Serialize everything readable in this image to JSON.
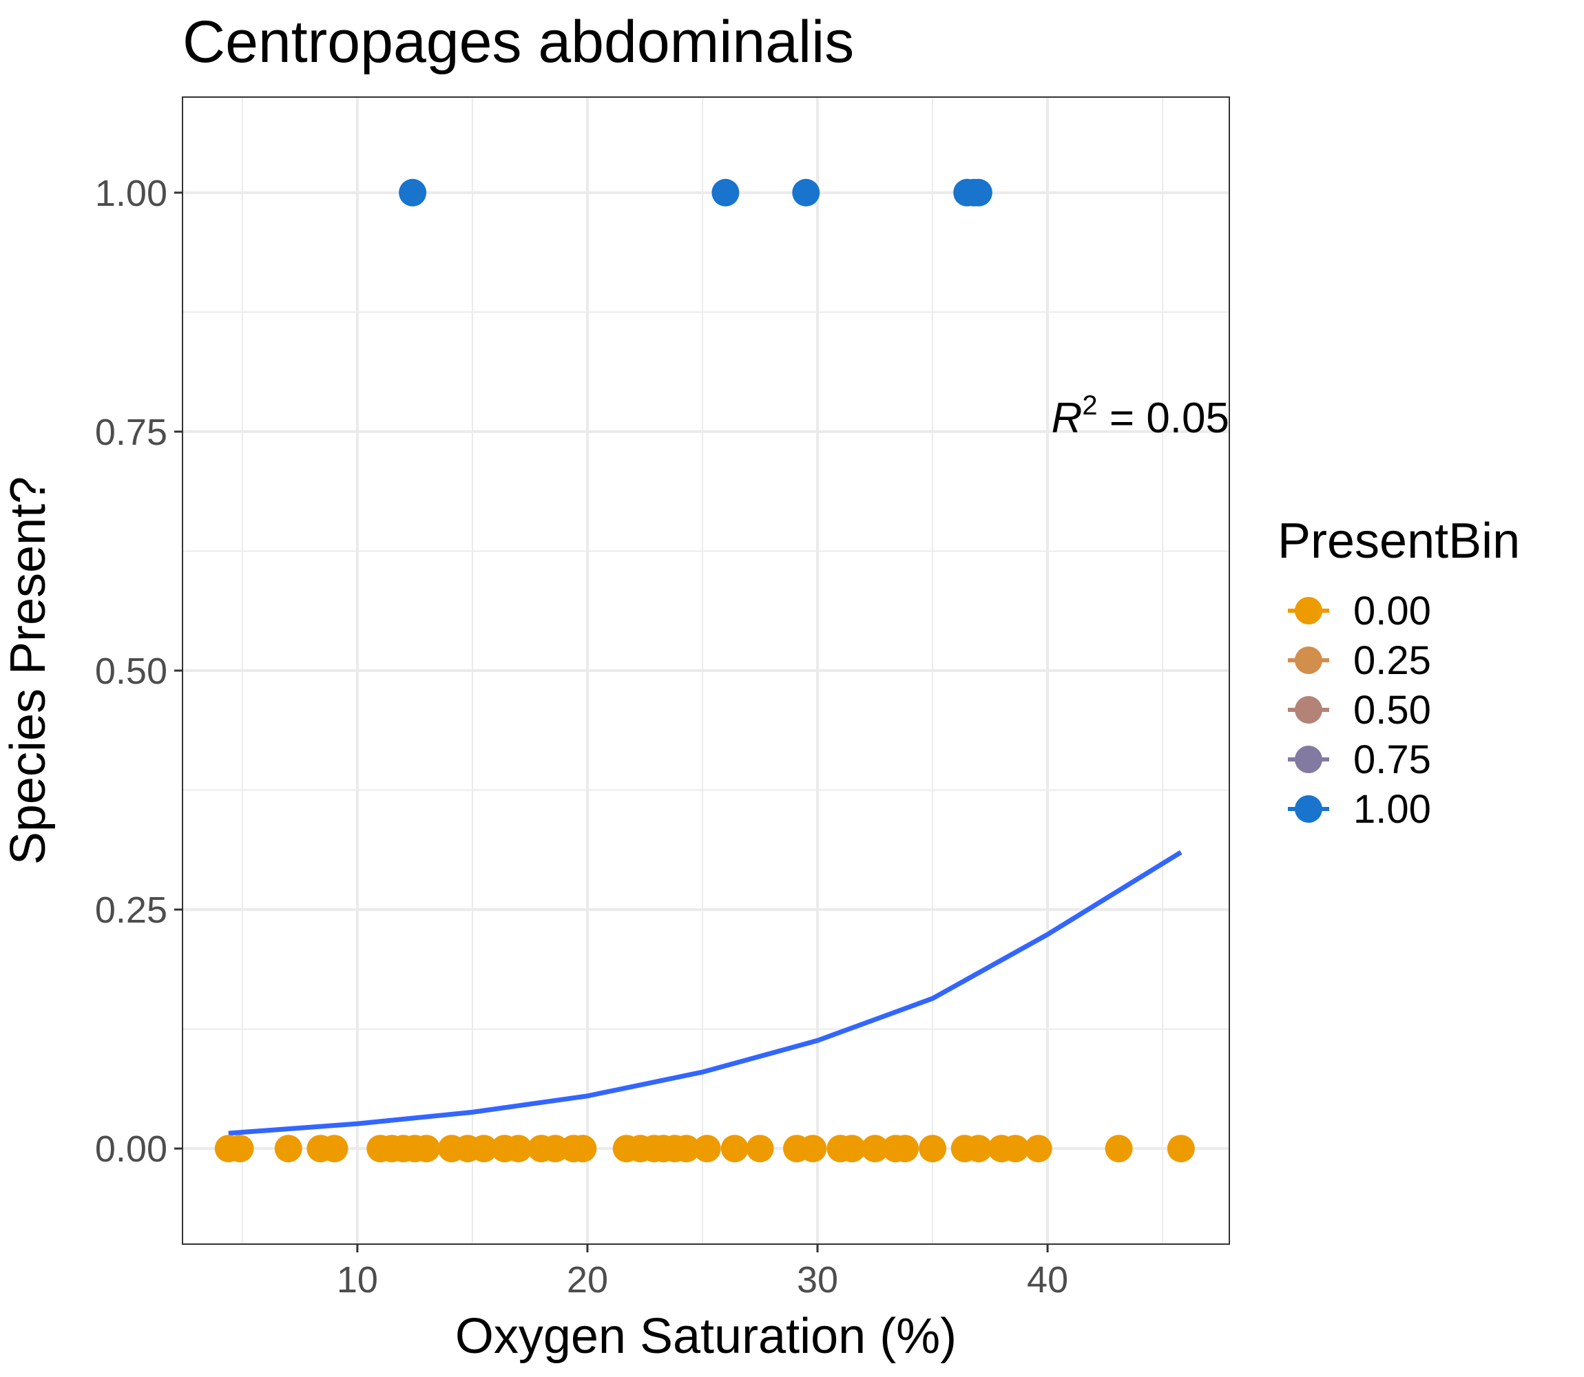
{
  "chart_data": {
    "type": "scatter",
    "title": "Centropages abdominalis",
    "xlabel": "Oxygen Saturation (%)",
    "ylabel": "Species Present?",
    "xlim": [
      2.4,
      47.9
    ],
    "ylim": [
      -0.1,
      1.1
    ],
    "x_ticks": [
      "10",
      "20",
      "30",
      "40"
    ],
    "x_tick_values": [
      10,
      20,
      30,
      40
    ],
    "x_minor_values": [
      5,
      15,
      25,
      35,
      45
    ],
    "y_ticks": [
      "0.00",
      "0.25",
      "0.50",
      "0.75",
      "1.00"
    ],
    "y_tick_values": [
      0,
      0.25,
      0.5,
      0.75,
      1.0
    ],
    "y_minor_values": [
      0.125,
      0.375,
      0.625,
      0.875
    ],
    "grid": true,
    "annotation": {
      "symbol": "R",
      "exponent": "2",
      "text": " = 0.05"
    },
    "legend": {
      "title": "PresentBin",
      "placement": "right",
      "entries": [
        {
          "label": "0.00",
          "color": "#EE9B00"
        },
        {
          "label": "0.25",
          "color": "#D28E4D"
        },
        {
          "label": "0.50",
          "color": "#B38378"
        },
        {
          "label": "0.75",
          "color": "#837AA2"
        },
        {
          "label": "1.00",
          "color": "#1874CD"
        }
      ]
    },
    "series": [
      {
        "present_bin": 0,
        "color": "#EE9B00",
        "x": [
          4.4,
          4.9,
          7.0,
          8.4,
          9.0,
          11.0,
          11.5,
          12.0,
          12.5,
          13.0,
          14.1,
          14.8,
          15.5,
          16.4,
          17.0,
          18.0,
          18.6,
          19.4,
          19.8,
          21.7,
          22.3,
          22.9,
          23.3,
          23.8,
          24.3,
          25.2,
          26.4,
          27.5,
          29.1,
          29.8,
          31.0,
          31.5,
          32.5,
          33.4,
          33.8,
          35.0,
          36.4,
          37.0,
          38.0,
          38.6,
          39.6,
          43.1,
          45.8
        ],
        "y": [
          0,
          0,
          0,
          0,
          0,
          0,
          0,
          0,
          0,
          0,
          0,
          0,
          0,
          0,
          0,
          0,
          0,
          0,
          0,
          0,
          0,
          0,
          0,
          0,
          0,
          0,
          0,
          0,
          0,
          0,
          0,
          0,
          0,
          0,
          0,
          0,
          0,
          0,
          0,
          0,
          0,
          0,
          0
        ]
      },
      {
        "present_bin": 1,
        "color": "#1874CD",
        "x": [
          12.4,
          26.0,
          29.5,
          36.5,
          36.8,
          37.0
        ],
        "y": [
          1,
          1,
          1,
          1,
          1,
          1
        ]
      }
    ],
    "fit_line": {
      "type": "logistic",
      "color": "#3366FF",
      "x": [
        4.4,
        10,
        15,
        20,
        25,
        30,
        35,
        40,
        45.8
      ],
      "y": [
        0.016,
        0.026,
        0.038,
        0.055,
        0.08,
        0.113,
        0.157,
        0.224,
        0.31
      ]
    }
  }
}
